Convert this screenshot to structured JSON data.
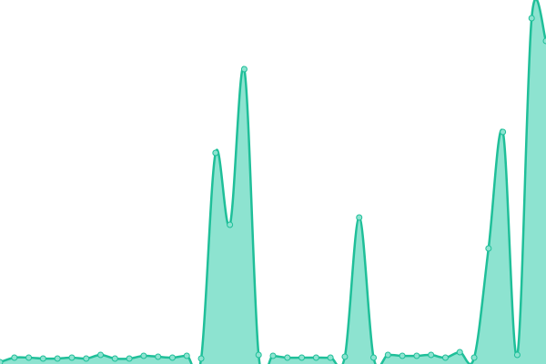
{
  "chart_data": {
    "type": "area",
    "categories": [
      null,
      null,
      null,
      null,
      null,
      null,
      null,
      null,
      null,
      null,
      null,
      null,
      null,
      null,
      null,
      null,
      null,
      null,
      null,
      null,
      null,
      null,
      null,
      null,
      null,
      null,
      null,
      null,
      null,
      null,
      null,
      null,
      null,
      null,
      null,
      null,
      null,
      null,
      null
    ],
    "values": [
      2,
      7,
      7,
      6,
      6,
      7,
      6,
      10,
      6,
      6,
      9,
      8,
      7,
      9,
      6,
      232,
      153,
      324,
      10,
      9,
      7,
      7,
      7,
      7,
      8,
      161,
      7,
      10,
      9,
      9,
      10,
      7,
      13,
      7,
      127,
      255,
      10,
      380,
      355
    ],
    "color": "#1fbf99",
    "fill": "#8de3d0",
    "ylim": [
      0,
      400
    ]
  }
}
